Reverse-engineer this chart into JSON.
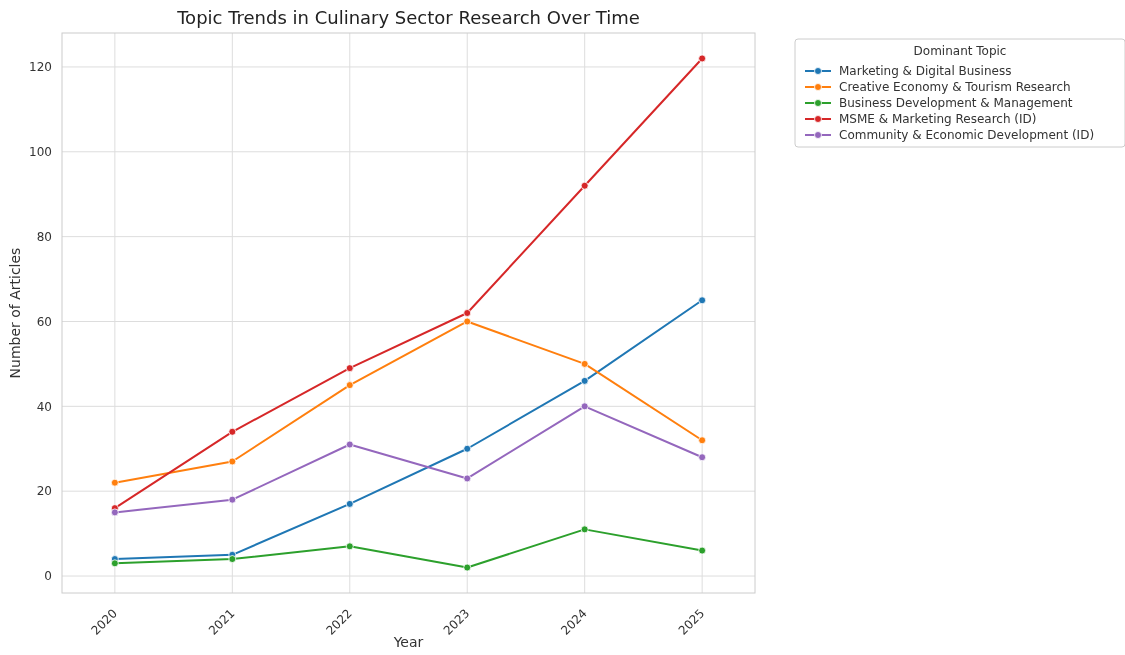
{
  "chart_data": {
    "type": "line",
    "title": "Topic Trends in Culinary Sector Research Over Time",
    "xlabel": "Year",
    "ylabel": "Number of Articles",
    "legend_title": "Dominant Topic",
    "categories": [
      "2020",
      "2021",
      "2022",
      "2023",
      "2024",
      "2025"
    ],
    "series": [
      {
        "name": "Marketing & Digital Business",
        "color": "#1f77b4",
        "values": [
          4,
          5,
          17,
          30,
          46,
          65
        ]
      },
      {
        "name": "Creative Economy & Tourism Research",
        "color": "#ff7f0e",
        "values": [
          22,
          27,
          45,
          60,
          50,
          32
        ]
      },
      {
        "name": "Business Development & Management",
        "color": "#2ca02c",
        "values": [
          3,
          4,
          7,
          2,
          11,
          6
        ]
      },
      {
        "name": "MSME & Marketing Research (ID)",
        "color": "#d62728",
        "values": [
          16,
          34,
          49,
          62,
          92,
          122
        ]
      },
      {
        "name": "Community & Economic Development (ID)",
        "color": "#9467bd",
        "values": [
          15,
          18,
          31,
          23,
          40,
          28
        ]
      }
    ],
    "ylim": [
      -4,
      128
    ],
    "yticks": [
      0,
      20,
      40,
      60,
      80,
      100,
      120
    ],
    "grid": true,
    "legend": "top right",
    "marker": "circle",
    "line_style": "solid"
  }
}
